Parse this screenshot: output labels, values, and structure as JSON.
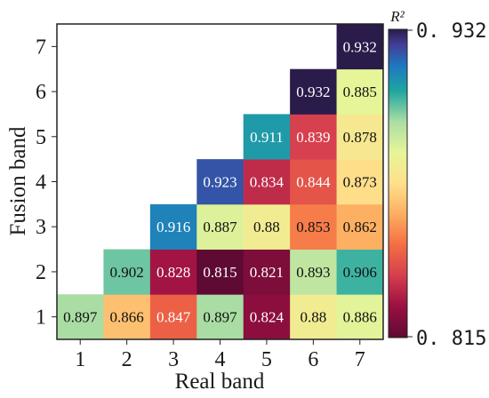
{
  "chart_data": {
    "type": "heatmap",
    "xlabel": "Real band",
    "ylabel": "Fusion band",
    "x_categories": [
      "1",
      "2",
      "3",
      "4",
      "5",
      "6",
      "7"
    ],
    "y_categories": [
      "1",
      "2",
      "3",
      "4",
      "5",
      "6",
      "7"
    ],
    "colorbar": {
      "title": "R²",
      "min": 0.815,
      "max": 0.932,
      "min_label": "0. 815",
      "max_label": "0. 932",
      "colormap": "Spectral_r"
    },
    "cells": [
      {
        "x": 1,
        "y": 1,
        "value": 0.897,
        "label": "0.897"
      },
      {
        "x": 2,
        "y": 1,
        "value": 0.866,
        "label": "0.866"
      },
      {
        "x": 3,
        "y": 1,
        "value": 0.847,
        "label": "0.847"
      },
      {
        "x": 4,
        "y": 1,
        "value": 0.897,
        "label": "0.897"
      },
      {
        "x": 5,
        "y": 1,
        "value": 0.824,
        "label": "0.824"
      },
      {
        "x": 6,
        "y": 1,
        "value": 0.88,
        "label": "0.88"
      },
      {
        "x": 7,
        "y": 1,
        "value": 0.886,
        "label": "0.886"
      },
      {
        "x": 2,
        "y": 2,
        "value": 0.902,
        "label": "0.902"
      },
      {
        "x": 3,
        "y": 2,
        "value": 0.828,
        "label": "0.828"
      },
      {
        "x": 4,
        "y": 2,
        "value": 0.815,
        "label": "0.815"
      },
      {
        "x": 5,
        "y": 2,
        "value": 0.821,
        "label": "0.821"
      },
      {
        "x": 6,
        "y": 2,
        "value": 0.893,
        "label": "0.893"
      },
      {
        "x": 7,
        "y": 2,
        "value": 0.906,
        "label": "0.906"
      },
      {
        "x": 3,
        "y": 3,
        "value": 0.916,
        "label": "0.916"
      },
      {
        "x": 4,
        "y": 3,
        "value": 0.887,
        "label": "0.887"
      },
      {
        "x": 5,
        "y": 3,
        "value": 0.88,
        "label": "0.88"
      },
      {
        "x": 6,
        "y": 3,
        "value": 0.853,
        "label": "0.853"
      },
      {
        "x": 7,
        "y": 3,
        "value": 0.862,
        "label": "0.862"
      },
      {
        "x": 4,
        "y": 4,
        "value": 0.923,
        "label": "0.923"
      },
      {
        "x": 5,
        "y": 4,
        "value": 0.834,
        "label": "0.834"
      },
      {
        "x": 6,
        "y": 4,
        "value": 0.844,
        "label": "0.844"
      },
      {
        "x": 7,
        "y": 4,
        "value": 0.873,
        "label": "0.873"
      },
      {
        "x": 5,
        "y": 5,
        "value": 0.911,
        "label": "0.911"
      },
      {
        "x": 6,
        "y": 5,
        "value": 0.839,
        "label": "0.839"
      },
      {
        "x": 7,
        "y": 5,
        "value": 0.878,
        "label": "0.878"
      },
      {
        "x": 6,
        "y": 6,
        "value": 0.932,
        "label": "0.932"
      },
      {
        "x": 7,
        "y": 6,
        "value": 0.885,
        "label": "0.885"
      },
      {
        "x": 7,
        "y": 7,
        "value": 0.932,
        "label": "0.932"
      }
    ]
  }
}
